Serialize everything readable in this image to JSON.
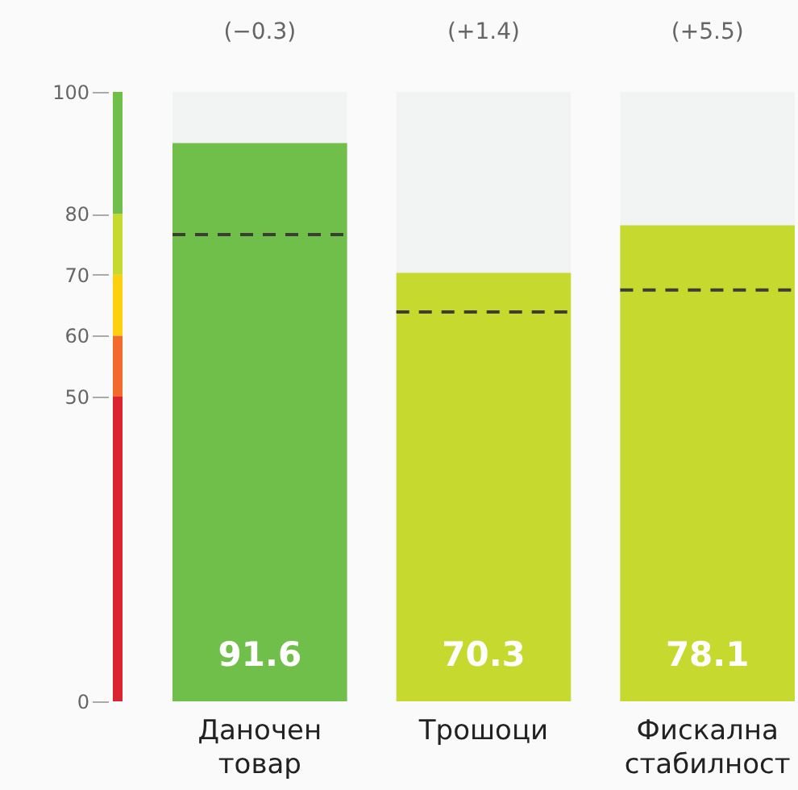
{
  "chart_data": {
    "type": "bar",
    "categories": [
      "Даночен товар",
      "Трошоци",
      "Фискална стабилност"
    ],
    "series": [
      {
        "values": [
          91.6,
          70.3,
          78.1
        ],
        "colors": [
          "#70bf4a",
          "#c6d92e",
          "#c6d92e"
        ],
        "value_labels": [
          "91.6",
          "70.3",
          "78.1"
        ]
      }
    ],
    "ref_lines": [
      {
        "axis": "y",
        "value": 76.6,
        "color": "#3d3d33",
        "line_style": "dashed"
      },
      {
        "axis": "y",
        "value": 63.9,
        "color": "#3d3d33",
        "line_style": "dashed"
      },
      {
        "axis": "y",
        "value": 67.5,
        "color": "#3d3d33",
        "line_style": "dashed"
      }
    ],
    "ylim": [
      0,
      100
    ],
    "yticks": [
      0,
      50,
      60,
      70,
      80,
      100
    ],
    "grid": false,
    "annotations": [
      "(−0.3)",
      "(+1.4)",
      "(+5.5)"
    ]
  }
}
